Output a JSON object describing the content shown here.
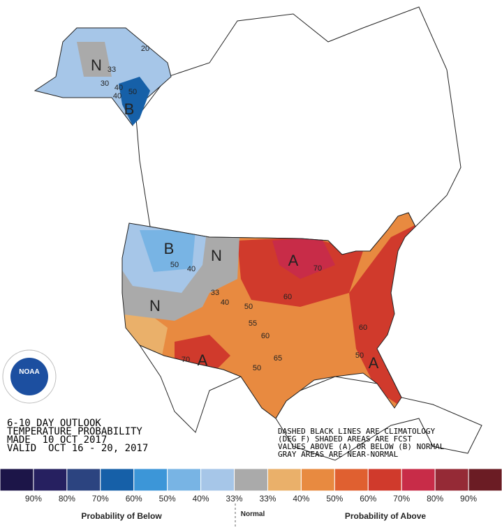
{
  "outlook": {
    "lines": [
      "6-10 DAY OUTLOOK",
      "TEMPERATURE PROBABILITY",
      "MADE  10 OCT 2017",
      "VALID  OCT 16 - 20, 2017"
    ]
  },
  "notes": [
    "DASHED BLACK LINES ARE CLIMATOLOGY",
    "(DEG F) SHADED AREAS ARE FCST",
    "VALUES ABOVE (A) OR BELOW (B) NORMAL",
    "GRAY AREAS ARE NEAR-NORMAL"
  ],
  "map_labels": {
    "categories": [
      "N",
      "B",
      "B",
      "N",
      "N",
      "A",
      "A",
      "A"
    ],
    "contours": [
      "20",
      "33",
      "30",
      "40",
      "50",
      "40",
      "50",
      "40",
      "33",
      "40",
      "50",
      "55",
      "60",
      "60",
      "65",
      "50",
      "70",
      "70",
      "60",
      "50"
    ]
  },
  "logo": "NOAA",
  "legend": {
    "colors": [
      "#1c1548",
      "#262060",
      "#2c4480",
      "#1660a8",
      "#3c96d8",
      "#78b4e4",
      "#a6c6e8",
      "#aaaaaa",
      "#eab06a",
      "#e88a40",
      "#e06030",
      "#d03a2c",
      "#c82c48",
      "#952a36",
      "#6b1c24"
    ],
    "labels": [
      "90%",
      "80%",
      "70%",
      "60%",
      "50%",
      "40%",
      "33%",
      "33%",
      "40%",
      "50%",
      "60%",
      "70%",
      "80%",
      "90%"
    ],
    "below": "Probability of Below",
    "normal": "Normal",
    "above": "Probability of Above"
  }
}
